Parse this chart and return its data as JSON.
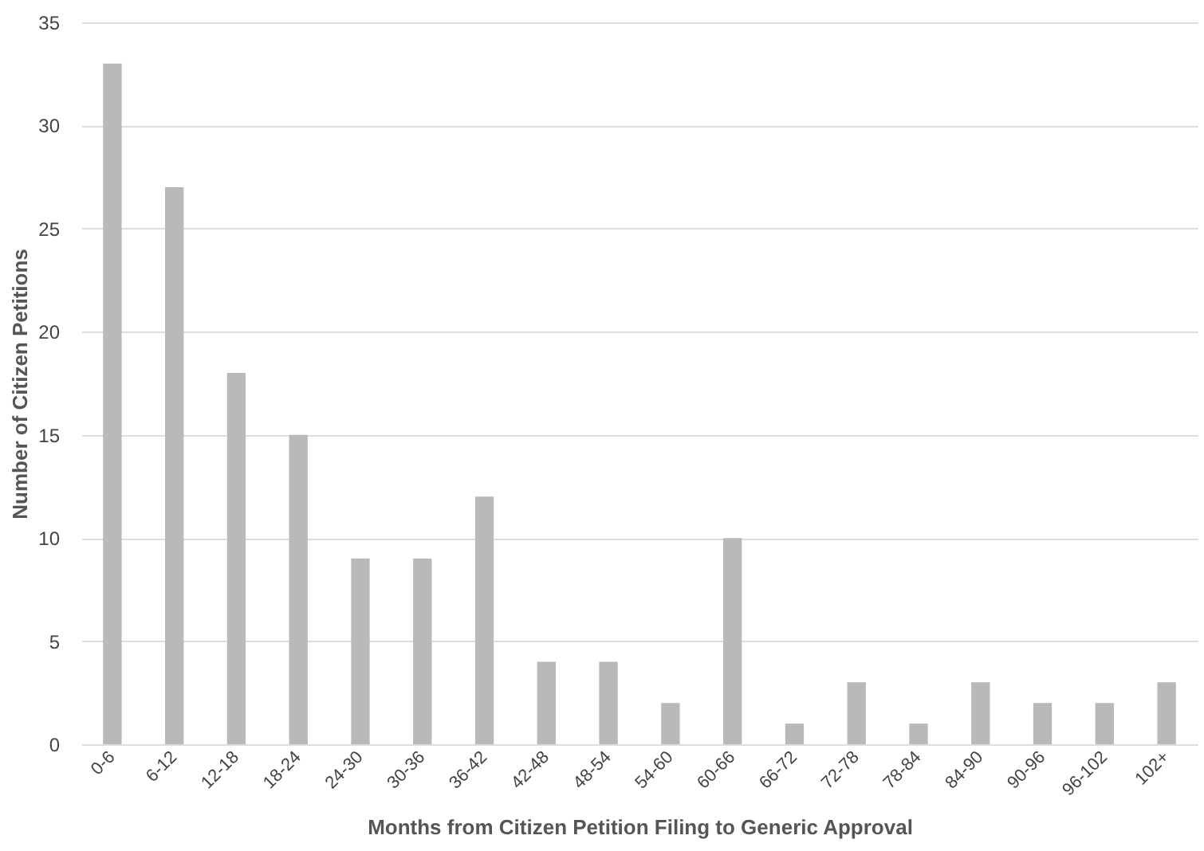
{
  "chart_data": {
    "type": "bar",
    "xlabel": "Months from Citizen Petition Filing to Generic Approval",
    "ylabel": "Number of Citizen Petitions",
    "categories": [
      "0-6",
      "6-12",
      "12-18",
      "18-24",
      "24-30",
      "30-36",
      "36-42",
      "42-48",
      "48-54",
      "54-60",
      "60-66",
      "66-72",
      "72-78",
      "78-84",
      "84-90",
      "90-96",
      "96-102",
      "102+"
    ],
    "values": [
      33,
      27,
      18,
      15,
      9,
      9,
      12,
      4,
      4,
      2,
      10,
      1,
      3,
      1,
      3,
      2,
      2,
      3
    ],
    "color": "#b9b9bb",
    "ylim": [
      0,
      35
    ],
    "yticks": [
      0,
      5,
      10,
      15,
      20,
      25,
      30,
      35
    ],
    "grid": "y"
  }
}
